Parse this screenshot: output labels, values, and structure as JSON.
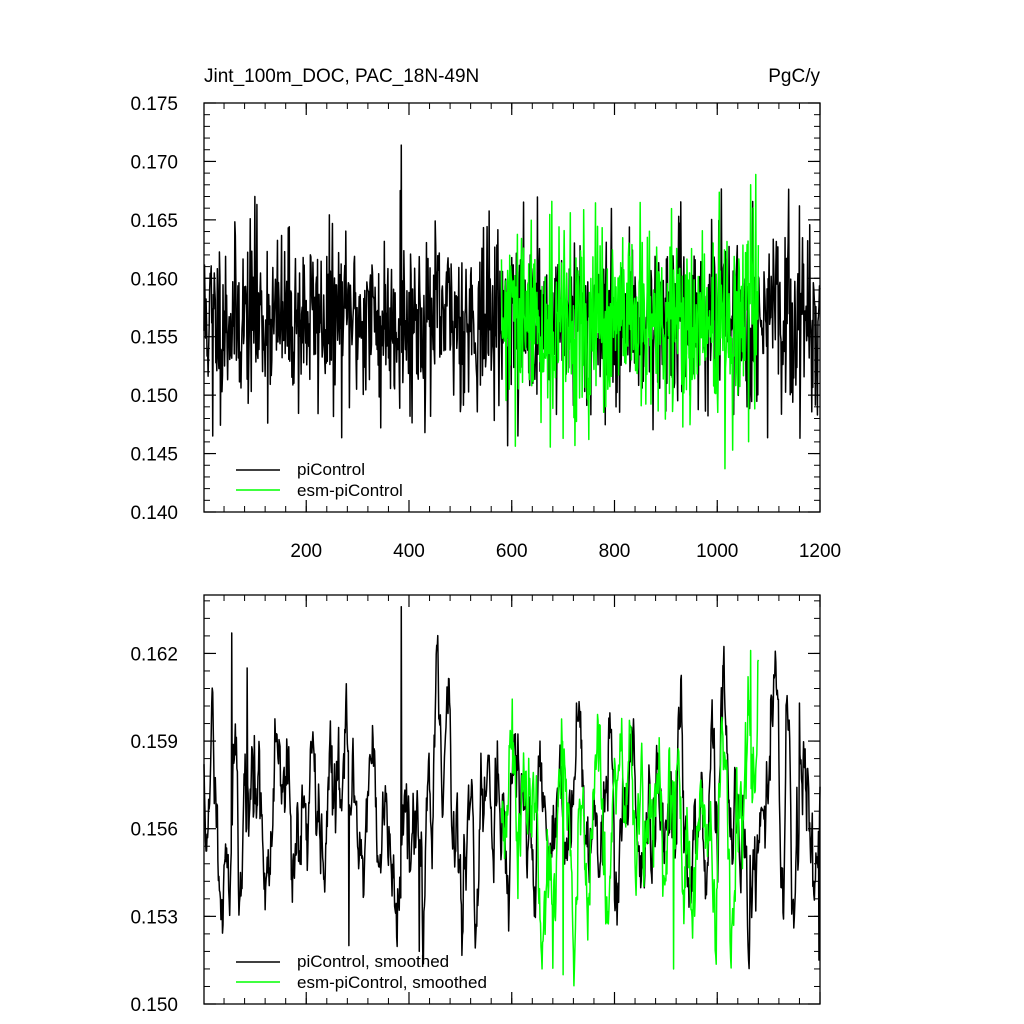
{
  "chart_data": [
    {
      "type": "line",
      "title": "Jint_100m_DOC, PAC_18N-49N",
      "units": "PgC/y",
      "xlim": [
        1,
        1200
      ],
      "ylim": [
        0.14,
        0.175
      ],
      "xticks": [
        200,
        400,
        600,
        800,
        1000,
        1200
      ],
      "yticks": [
        0.14,
        0.145,
        0.15,
        0.155,
        0.16,
        0.165,
        0.17,
        0.175
      ],
      "ytick_labels": [
        "0.140",
        "0.145",
        "0.150",
        "0.155",
        "0.160",
        "0.165",
        "0.170",
        "0.175"
      ],
      "xtick_labels": [
        "200",
        "400",
        "600",
        "800",
        "1000",
        "1200"
      ],
      "grid": false,
      "legend_position": "bottom-left",
      "series": [
        {
          "name": "piControl",
          "color": "#000000",
          "x_start": 1,
          "x_end": 1200,
          "mean": 0.1565,
          "std": 0.0036,
          "seed": 11,
          "spikes": [
            [
              385,
              0.1714
            ],
            [
              383,
              0.1675
            ],
            [
              100,
              0.167
            ],
            [
              18,
              0.1465
            ],
            [
              345,
              0.1472
            ],
            [
              612,
              0.1465
            ],
            [
              1195,
              0.1483
            ],
            [
              1160,
              0.1662
            ],
            [
              395,
              0.153
            ]
          ]
        },
        {
          "name": "esm-piControl",
          "color": "#00ff00",
          "x_start": 580,
          "x_end": 1080,
          "mean": 0.156,
          "std": 0.004,
          "seed": 29,
          "spikes": [
            [
              1065,
              0.168
            ],
            [
              1015,
              0.1437
            ],
            [
              700,
              0.1463
            ],
            [
              750,
              0.1462
            ],
            [
              1070,
              0.166
            ]
          ]
        }
      ]
    },
    {
      "type": "line",
      "xlim": [
        1,
        1200
      ],
      "ylim": [
        0.15,
        0.164
      ],
      "yticks": [
        0.15,
        0.153,
        0.156,
        0.159,
        0.162
      ],
      "ytick_labels": [
        "0.150",
        "0.153",
        "0.156",
        "0.159",
        "0.162"
      ],
      "xticks": [
        200,
        400,
        600,
        800,
        1000,
        1200
      ],
      "grid": false,
      "legend_position": "bottom-left",
      "series": [
        {
          "name": "piControl, smoothed",
          "color": "#000000",
          "x_start": 1,
          "x_end": 1200,
          "mean": 0.1565,
          "std": 0.0019,
          "seed": 11,
          "spikes": [
            [
              385,
              0.1636
            ],
            [
              55,
              0.1627
            ],
            [
              85,
              0.1615
            ],
            [
              420,
              0.1518
            ],
            [
              283,
              0.152
            ],
            [
              1198,
              0.1515
            ],
            [
              1160,
              0.1603
            ]
          ]
        },
        {
          "name": "esm-piControl, smoothed",
          "color": "#00ff00",
          "x_start": 580,
          "x_end": 1080,
          "mean": 0.1562,
          "std": 0.002,
          "seed": 29,
          "spikes": [
            [
              1065,
              0.1621
            ],
            [
              700,
              0.151
            ],
            [
              915,
              0.1512
            ],
            [
              1060,
              0.1612
            ]
          ]
        }
      ]
    }
  ]
}
